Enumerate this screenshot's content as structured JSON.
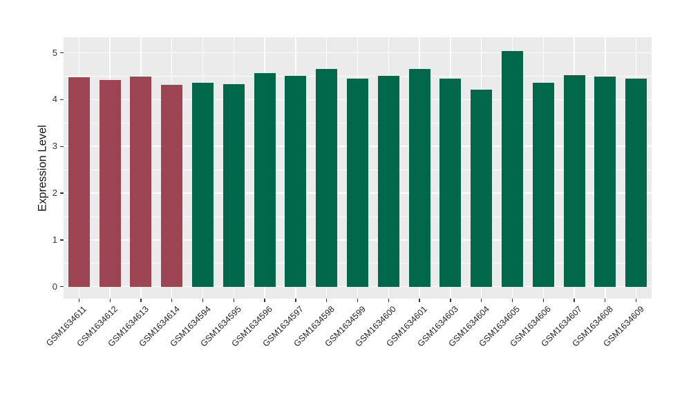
{
  "chart_data": {
    "type": "bar",
    "title": "",
    "xlabel": "",
    "ylabel": "Expression Level",
    "ylim": [
      0,
      5.33
    ],
    "yticks": [
      0,
      1,
      2,
      3,
      4,
      5
    ],
    "yminorticks": [
      0.5,
      1.5,
      2.5,
      3.5,
      4.5
    ],
    "grid": "on",
    "legend_position": "none",
    "categories": [
      "GSM1634611",
      "GSM1634612",
      "GSM1634613",
      "GSM1634614",
      "GSM1634594",
      "GSM1634595",
      "GSM1634596",
      "GSM1634597",
      "GSM1634598",
      "GSM1634599",
      "GSM1634600",
      "GSM1634601",
      "GSM1634603",
      "GSM1634604",
      "GSM1634605",
      "GSM1634606",
      "GSM1634607",
      "GSM1634608",
      "GSM1634609"
    ],
    "values": [
      4.47,
      4.42,
      4.49,
      4.31,
      4.36,
      4.33,
      4.57,
      4.51,
      4.65,
      4.44,
      4.5,
      4.65,
      4.44,
      4.21,
      5.03,
      4.36,
      4.52,
      4.49,
      4.44
    ],
    "bar_colors": [
      "#9C4451",
      "#9C4451",
      "#9C4451",
      "#9C4451",
      "#00674A",
      "#00674A",
      "#00674A",
      "#00674A",
      "#00674A",
      "#00674A",
      "#00674A",
      "#00674A",
      "#00674A",
      "#00674A",
      "#00674A",
      "#00674A",
      "#00674A",
      "#00674A",
      "#00674A"
    ],
    "group_colors": {
      "group1": "#9C4451",
      "group2": "#00674A"
    },
    "panel_background": "#EBEBEB",
    "grid_color": "#FFFFFF"
  }
}
